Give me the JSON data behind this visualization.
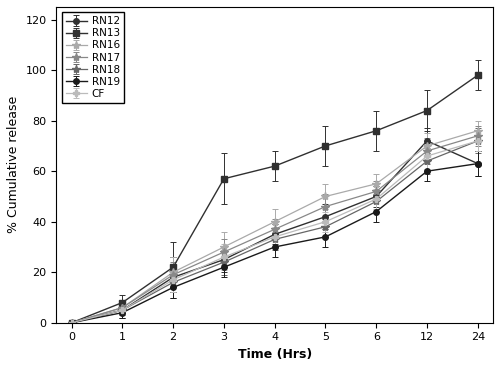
{
  "series": [
    {
      "label": "RN12",
      "color": "#303030",
      "marker": "o",
      "markersize": 4,
      "linewidth": 1.0,
      "x_idx": [
        0,
        1,
        2,
        3,
        4,
        5,
        6,
        7,
        8
      ],
      "y": [
        0,
        5,
        18,
        25,
        35,
        42,
        50,
        72,
        63
      ],
      "yerr": [
        0,
        3,
        8,
        5,
        4,
        5,
        4,
        5,
        5
      ]
    },
    {
      "label": "RN13",
      "color": "#303030",
      "marker": "s",
      "markersize": 5,
      "linewidth": 1.0,
      "x_idx": [
        0,
        1,
        2,
        3,
        4,
        5,
        6,
        7,
        8
      ],
      "y": [
        0,
        8,
        22,
        57,
        62,
        70,
        76,
        84,
        98
      ],
      "yerr": [
        0,
        3,
        10,
        10,
        6,
        8,
        8,
        8,
        6
      ]
    },
    {
      "label": "RN16",
      "color": "#aaaaaa",
      "marker": "*",
      "markersize": 6,
      "linewidth": 0.9,
      "x_idx": [
        0,
        1,
        2,
        3,
        4,
        5,
        6,
        7,
        8
      ],
      "y": [
        0,
        6,
        20,
        30,
        40,
        50,
        55,
        70,
        76
      ],
      "yerr": [
        0,
        2,
        6,
        6,
        5,
        5,
        4,
        5,
        4
      ]
    },
    {
      "label": "RN17",
      "color": "#888888",
      "marker": "*",
      "markersize": 6,
      "linewidth": 0.9,
      "x_idx": [
        0,
        1,
        2,
        3,
        4,
        5,
        6,
        7,
        8
      ],
      "y": [
        0,
        6,
        19,
        28,
        37,
        46,
        52,
        68,
        74
      ],
      "yerr": [
        0,
        2,
        5,
        5,
        4,
        5,
        4,
        5,
        4
      ]
    },
    {
      "label": "RN18",
      "color": "#666666",
      "marker": "*",
      "markersize": 6,
      "linewidth": 0.9,
      "x_idx": [
        0,
        1,
        2,
        3,
        4,
        5,
        6,
        7,
        8
      ],
      "y": [
        0,
        5,
        16,
        24,
        33,
        38,
        48,
        64,
        72
      ],
      "yerr": [
        0,
        2,
        4,
        5,
        4,
        4,
        4,
        5,
        5
      ]
    },
    {
      "label": "RN19",
      "color": "#1a1a1a",
      "marker": "o",
      "markersize": 4,
      "linewidth": 1.0,
      "x_idx": [
        0,
        1,
        2,
        3,
        4,
        5,
        6,
        7,
        8
      ],
      "y": [
        0,
        4,
        14,
        22,
        30,
        34,
        44,
        60,
        63
      ],
      "yerr": [
        0,
        2,
        4,
        4,
        4,
        4,
        4,
        4,
        5
      ]
    },
    {
      "label": "CF",
      "color": "#bbbbbb",
      "marker": "P",
      "markersize": 5,
      "linewidth": 0.9,
      "x_idx": [
        0,
        1,
        2,
        3,
        4,
        5,
        6,
        7,
        8
      ],
      "y": [
        0,
        5,
        17,
        26,
        34,
        40,
        49,
        66,
        72
      ],
      "yerr": [
        0,
        2,
        5,
        5,
        4,
        4,
        4,
        5,
        4
      ]
    }
  ],
  "x_tick_labels": [
    "0",
    "1",
    "2",
    "3",
    "4",
    "5",
    "6",
    "12",
    "24"
  ],
  "xlabel": "Time (Hrs)",
  "ylabel": "% Cumulative release",
  "ylim": [
    0,
    125
  ],
  "yticks": [
    0,
    20,
    40,
    60,
    80,
    100,
    120
  ],
  "legend_loc": "upper left",
  "legend_fontsize": 7.5,
  "axis_fontsize": 9,
  "tick_fontsize": 8,
  "background_color": "#ffffff",
  "figsize": [
    5.0,
    3.68
  ],
  "dpi": 100
}
